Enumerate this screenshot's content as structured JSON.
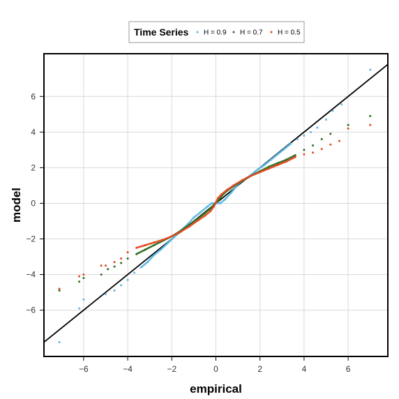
{
  "chart_data": {
    "type": "scatter",
    "title": "",
    "xlabel": "empirical",
    "ylabel": "model",
    "xlim": [
      -7.8,
      7.8
    ],
    "ylim": [
      -8.6,
      8.4
    ],
    "xticks": [
      -6,
      -4,
      -2,
      0,
      2,
      4,
      6
    ],
    "yticks": [
      -6,
      -4,
      -2,
      0,
      2,
      4,
      6
    ],
    "tick_labels_x": [
      "−6",
      "−4",
      "−2",
      "0",
      "2",
      "4",
      "6"
    ],
    "tick_labels_y": [
      "−6",
      "−4",
      "−2",
      "0",
      "2",
      "4",
      "6"
    ],
    "grid": true,
    "legend": {
      "title": "Time Series",
      "placement": "top-center",
      "entries": [
        "H = 0.9",
        "H = 0.7",
        "H = 0.5"
      ]
    },
    "reference_line": {
      "slope": 1,
      "intercept": 0,
      "color": "#000000"
    },
    "series": [
      {
        "name": "H = 0.9",
        "color": "#5BB8E3",
        "points": [
          [
            -7.1,
            -7.8
          ],
          [
            -6.2,
            -5.9
          ],
          [
            -6.0,
            -5.4
          ],
          [
            -5.0,
            -5.1
          ],
          [
            -4.6,
            -4.9
          ],
          [
            -4.3,
            -4.6
          ],
          [
            -4.0,
            -4.3
          ],
          [
            -3.7,
            -3.9
          ],
          [
            -3.4,
            -3.6
          ],
          [
            -3.1,
            -3.3
          ],
          [
            -2.8,
            -2.9
          ],
          [
            -2.5,
            -2.6
          ],
          [
            -2.2,
            -2.25
          ],
          [
            -1.9,
            -1.9
          ],
          [
            -1.6,
            -1.55
          ],
          [
            -1.3,
            -1.2
          ],
          [
            -1.0,
            -0.8
          ],
          [
            -0.7,
            -0.5
          ],
          [
            -0.4,
            -0.2
          ],
          [
            -0.2,
            0.0
          ],
          [
            0.0,
            0.0
          ],
          [
            0.2,
            0.0
          ],
          [
            0.4,
            0.2
          ],
          [
            0.7,
            0.6
          ],
          [
            1.0,
            1.05
          ],
          [
            1.3,
            1.35
          ],
          [
            1.6,
            1.6
          ],
          [
            1.9,
            1.9
          ],
          [
            2.2,
            2.15
          ],
          [
            2.5,
            2.45
          ],
          [
            2.8,
            2.75
          ],
          [
            3.1,
            3.05
          ],
          [
            3.4,
            3.35
          ],
          [
            3.7,
            3.6
          ],
          [
            4.0,
            3.8
          ],
          [
            4.3,
            4.0
          ],
          [
            4.6,
            4.25
          ],
          [
            5.0,
            4.7
          ],
          [
            5.3,
            5.2
          ],
          [
            5.7,
            5.55
          ],
          [
            7.0,
            7.5
          ]
        ]
      },
      {
        "name": "H = 0.7",
        "color": "#2E6B1F",
        "points": [
          [
            -7.1,
            -4.9
          ],
          [
            -6.2,
            -4.4
          ],
          [
            -6.0,
            -4.2
          ],
          [
            -5.2,
            -4.0
          ],
          [
            -4.9,
            -3.7
          ],
          [
            -4.6,
            -3.55
          ],
          [
            -4.3,
            -3.35
          ],
          [
            -4.0,
            -3.1
          ],
          [
            -3.6,
            -2.85
          ],
          [
            -3.2,
            -2.6
          ],
          [
            -2.8,
            -2.35
          ],
          [
            -2.4,
            -2.1
          ],
          [
            -2.0,
            -1.85
          ],
          [
            -1.6,
            -1.55
          ],
          [
            -1.2,
            -1.2
          ],
          [
            -0.8,
            -0.85
          ],
          [
            -0.5,
            -0.55
          ],
          [
            -0.25,
            -0.3
          ],
          [
            -0.1,
            -0.1
          ],
          [
            0.0,
            0.05
          ],
          [
            0.1,
            0.15
          ],
          [
            0.25,
            0.4
          ],
          [
            0.5,
            0.7
          ],
          [
            0.8,
            0.95
          ],
          [
            1.2,
            1.25
          ],
          [
            1.6,
            1.55
          ],
          [
            2.0,
            1.8
          ],
          [
            2.4,
            2.05
          ],
          [
            2.8,
            2.25
          ],
          [
            3.2,
            2.45
          ],
          [
            3.6,
            2.7
          ],
          [
            4.0,
            3.0
          ],
          [
            4.4,
            3.25
          ],
          [
            4.8,
            3.6
          ],
          [
            5.2,
            3.9
          ],
          [
            6.0,
            4.4
          ],
          [
            7.0,
            4.9
          ]
        ]
      },
      {
        "name": "H = 0.5",
        "color": "#E04A1F",
        "points": [
          [
            -7.1,
            -4.8
          ],
          [
            -6.2,
            -4.1
          ],
          [
            -6.0,
            -4.0
          ],
          [
            -5.2,
            -3.5
          ],
          [
            -5.0,
            -3.5
          ],
          [
            -4.6,
            -3.3
          ],
          [
            -4.3,
            -3.1
          ],
          [
            -4.0,
            -2.75
          ],
          [
            -3.6,
            -2.5
          ],
          [
            -3.2,
            -2.35
          ],
          [
            -2.8,
            -2.2
          ],
          [
            -2.4,
            -2.05
          ],
          [
            -2.0,
            -1.85
          ],
          [
            -1.6,
            -1.6
          ],
          [
            -1.2,
            -1.3
          ],
          [
            -0.8,
            -0.95
          ],
          [
            -0.5,
            -0.7
          ],
          [
            -0.25,
            -0.45
          ],
          [
            -0.1,
            -0.2
          ],
          [
            0.0,
            0.05
          ],
          [
            0.1,
            0.3
          ],
          [
            0.25,
            0.5
          ],
          [
            0.5,
            0.75
          ],
          [
            0.8,
            1.0
          ],
          [
            1.2,
            1.3
          ],
          [
            1.6,
            1.55
          ],
          [
            2.0,
            1.75
          ],
          [
            2.4,
            1.95
          ],
          [
            2.8,
            2.15
          ],
          [
            3.2,
            2.35
          ],
          [
            3.6,
            2.6
          ],
          [
            4.0,
            2.75
          ],
          [
            4.4,
            2.85
          ],
          [
            4.8,
            3.05
          ],
          [
            5.2,
            3.3
          ],
          [
            5.6,
            3.5
          ],
          [
            6.0,
            4.2
          ],
          [
            7.0,
            4.4
          ]
        ]
      }
    ]
  }
}
